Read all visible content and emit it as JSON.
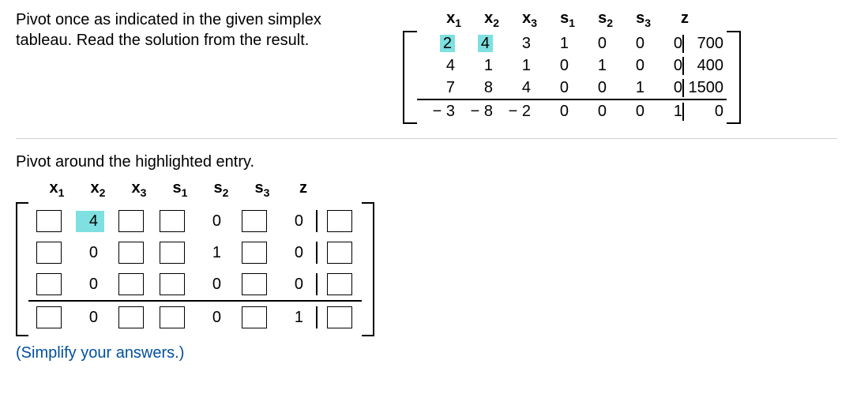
{
  "prompt": "Pivot once as indicated in the given simplex tableau. Read the solution from the result.",
  "headers": {
    "x1": "x",
    "x1_sub": "1",
    "x2": "x",
    "x2_sub": "2",
    "x3": "x",
    "x3_sub": "3",
    "s1": "s",
    "s1_sub": "1",
    "s2": "s",
    "s2_sub": "2",
    "s3": "s",
    "s3_sub": "3",
    "z": "z"
  },
  "top_tableau": {
    "rows": [
      {
        "c": [
          "2",
          "4",
          "3",
          "1",
          "0",
          "0",
          "0"
        ],
        "rhs": "700",
        "hl_col": [
          0,
          1
        ]
      },
      {
        "c": [
          "4",
          "1",
          "1",
          "0",
          "1",
          "0",
          "0"
        ],
        "rhs": "400"
      },
      {
        "c": [
          "7",
          "8",
          "4",
          "0",
          "0",
          "1",
          "0"
        ],
        "rhs": "1500"
      },
      {
        "c": [
          "− 3",
          "− 8",
          "− 2",
          "0",
          "0",
          "0",
          "1"
        ],
        "rhs": "0",
        "divider": true
      }
    ],
    "highlight": {
      "row": 0,
      "cols": [
        0,
        1
      ]
    },
    "colors": {
      "highlight_bg": "#7ee0e0"
    }
  },
  "instruction": "Pivot around the highlighted entry.",
  "bottom_tableau": {
    "rows": [
      {
        "cells": [
          {
            "t": "input"
          },
          {
            "t": "fill",
            "v": "4",
            "hl": true
          },
          {
            "t": "input"
          },
          {
            "t": "input"
          },
          {
            "t": "fill",
            "v": "0"
          },
          {
            "t": "input"
          },
          {
            "t": "fill",
            "v": "0"
          },
          {
            "t": "input",
            "rhs": true
          }
        ]
      },
      {
        "cells": [
          {
            "t": "input"
          },
          {
            "t": "fill",
            "v": "0"
          },
          {
            "t": "input"
          },
          {
            "t": "input"
          },
          {
            "t": "fill",
            "v": "1"
          },
          {
            "t": "input"
          },
          {
            "t": "fill",
            "v": "0"
          },
          {
            "t": "input",
            "rhs": true
          }
        ]
      },
      {
        "cells": [
          {
            "t": "input"
          },
          {
            "t": "fill",
            "v": "0"
          },
          {
            "t": "input"
          },
          {
            "t": "input"
          },
          {
            "t": "fill",
            "v": "0"
          },
          {
            "t": "input"
          },
          {
            "t": "fill",
            "v": "0"
          },
          {
            "t": "input",
            "rhs": true
          }
        ]
      },
      {
        "divider": true,
        "cells": [
          {
            "t": "input"
          },
          {
            "t": "fill",
            "v": "0"
          },
          {
            "t": "input"
          },
          {
            "t": "input"
          },
          {
            "t": "fill",
            "v": "0"
          },
          {
            "t": "input"
          },
          {
            "t": "fill",
            "v": "1"
          },
          {
            "t": "input",
            "rhs": true
          }
        ]
      }
    ]
  },
  "hint": "(Simplify your answers.)",
  "style": {
    "font_family": "Arial, Helvetica, sans-serif",
    "font_size_pt": 20,
    "highlight_color": "#7ee0e0",
    "hint_color": "#0050a0",
    "divider_color": "#d0d0d0"
  }
}
